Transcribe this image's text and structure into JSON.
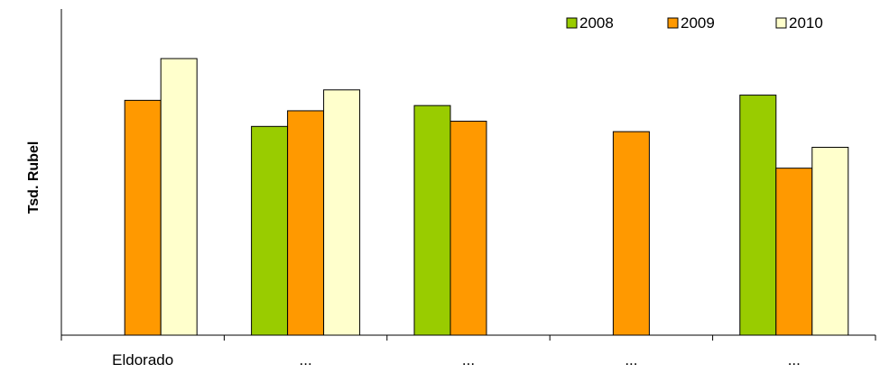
{
  "chart_data": {
    "type": "bar",
    "title": "",
    "xlabel": "",
    "ylabel": "Tsd. Rubel",
    "categories": [
      "Eldorado",
      "...",
      "...",
      "...",
      "..."
    ],
    "series": [
      {
        "name": "2008",
        "color": "#99cc00",
        "values": [
          null,
          80,
          88,
          null,
          92
        ]
      },
      {
        "name": "2009",
        "color": "#ff9900",
        "values": [
          90,
          86,
          82,
          78,
          64
        ]
      },
      {
        "name": "2010",
        "color": "#ffffcc",
        "values": [
          106,
          94,
          null,
          null,
          72
        ]
      }
    ],
    "ylim": [
      0,
      125
    ],
    "grid": false,
    "legend": "top-right"
  }
}
